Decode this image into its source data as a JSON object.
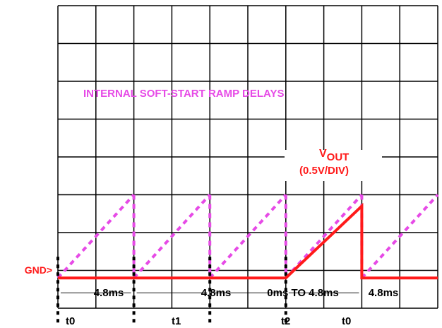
{
  "chart_data": {
    "type": "line",
    "annotations": {
      "ramp_title": "INTERNAL SOFT-START RAMP DELAYS",
      "vout_main": "V",
      "vout_sub": "OUT",
      "vout_scale": "(0.5V/DIV)",
      "gnd": "GND>"
    },
    "intervals": [
      {
        "label": "4.8ms"
      },
      {
        "label": "4.8ms"
      },
      {
        "label": "0ms TO 4.8ms"
      },
      {
        "label": "4.8ms"
      }
    ],
    "time_markers": [
      "t0",
      "t1",
      "t2",
      "t0"
    ],
    "grid": {
      "on": true,
      "divisions_x": 10,
      "divisions_y": 8
    },
    "units": {
      "x": "ms",
      "y": "V",
      "y_per_div": 0.5
    },
    "series": [
      {
        "name": "VOUT",
        "color": "#ff1a1a",
        "style": "solid",
        "points": [
          [
            0,
            0
          ],
          [
            14.4,
            0
          ],
          [
            19.2,
            0.95
          ],
          [
            19.2,
            0
          ],
          [
            24.0,
            0
          ]
        ]
      }
    ],
    "ramps": {
      "color": "#e64ae6",
      "style": "dashed",
      "segments": [
        [
          0,
          4.8
        ],
        [
          4.8,
          9.6
        ],
        [
          9.6,
          14.4
        ],
        [
          14.4,
          19.2
        ],
        [
          19.2,
          24.0
        ]
      ],
      "peak_v": 1.1
    },
    "xlim": [
      0,
      24.0
    ],
    "ylim": [
      -0.4,
      3.6
    ]
  }
}
